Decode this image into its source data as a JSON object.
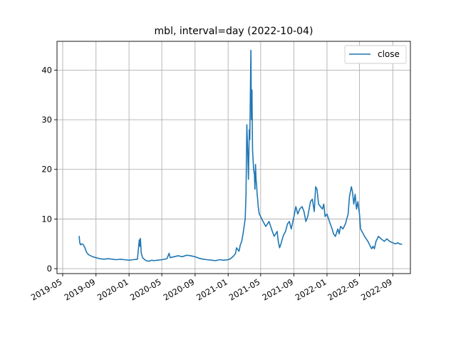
{
  "chart_data": {
    "type": "line",
    "title": "mbl, interval=day (2022-10-04)",
    "xlabel": "",
    "ylabel": "",
    "x_axis": {
      "kind": "date",
      "range": [
        "2019-04-10",
        "2022-11-05"
      ],
      "ticks": [
        "2019-05",
        "2019-09",
        "2020-01",
        "2020-05",
        "2020-09",
        "2021-01",
        "2021-05",
        "2021-09",
        "2022-01",
        "2022-05",
        "2022-09"
      ]
    },
    "y_axis": {
      "range": [
        -1.0,
        45.8
      ],
      "ticks": [
        0,
        10,
        20,
        30,
        40
      ]
    },
    "grid": true,
    "legend": {
      "position": "top-right",
      "entries": [
        "close"
      ]
    },
    "colors": {
      "line": "#1f77b4"
    },
    "series": [
      {
        "name": "close",
        "x": [
          "2019-07-01",
          "2019-07-03",
          "2019-07-06",
          "2019-07-10",
          "2019-07-15",
          "2019-07-22",
          "2019-07-29",
          "2019-08-05",
          "2019-08-12",
          "2019-08-20",
          "2019-09-01",
          "2019-09-15",
          "2019-10-01",
          "2019-10-15",
          "2019-11-01",
          "2019-11-15",
          "2019-12-01",
          "2019-12-15",
          "2020-01-01",
          "2020-01-15",
          "2020-02-01",
          "2020-02-08",
          "2020-02-10",
          "2020-02-12",
          "2020-02-15",
          "2020-02-20",
          "2020-02-28",
          "2020-03-05",
          "2020-03-15",
          "2020-03-25",
          "2020-04-01",
          "2020-04-15",
          "2020-05-01",
          "2020-05-20",
          "2020-05-28",
          "2020-06-01",
          "2020-06-15",
          "2020-07-01",
          "2020-07-15",
          "2020-08-01",
          "2020-08-15",
          "2020-09-01",
          "2020-09-15",
          "2020-10-01",
          "2020-10-15",
          "2020-11-01",
          "2020-11-15",
          "2020-12-01",
          "2020-12-15",
          "2021-01-01",
          "2021-01-10",
          "2021-01-20",
          "2021-01-28",
          "2021-02-01",
          "2021-02-10",
          "2021-02-15",
          "2021-02-20",
          "2021-02-25",
          "2021-03-01",
          "2021-03-05",
          "2021-03-08",
          "2021-03-11",
          "2021-03-14",
          "2021-03-17",
          "2021-03-20",
          "2021-03-22",
          "2021-03-24",
          "2021-03-26",
          "2021-03-28",
          "2021-03-30",
          "2021-04-01",
          "2021-04-03",
          "2021-04-05",
          "2021-04-08",
          "2021-04-10",
          "2021-04-12",
          "2021-04-14",
          "2021-04-16",
          "2021-04-18",
          "2021-04-20",
          "2021-04-22",
          "2021-04-26",
          "2021-05-01",
          "2021-05-05",
          "2021-05-10",
          "2021-05-15",
          "2021-05-20",
          "2021-06-01",
          "2021-06-10",
          "2021-06-20",
          "2021-07-01",
          "2021-07-05",
          "2021-07-10",
          "2021-07-15",
          "2021-07-20",
          "2021-07-25",
          "2021-08-01",
          "2021-08-08",
          "2021-08-15",
          "2021-08-22",
          "2021-09-01",
          "2021-09-08",
          "2021-09-15",
          "2021-09-22",
          "2021-10-01",
          "2021-10-08",
          "2021-10-15",
          "2021-10-22",
          "2021-11-01",
          "2021-11-08",
          "2021-11-15",
          "2021-11-20",
          "2021-11-25",
          "2021-12-01",
          "2021-12-08",
          "2021-12-15",
          "2021-12-20",
          "2021-12-25",
          "2022-01-01",
          "2022-01-10",
          "2022-01-20",
          "2022-01-25",
          "2022-02-01",
          "2022-02-10",
          "2022-02-15",
          "2022-02-20",
          "2022-03-01",
          "2022-03-10",
          "2022-03-20",
          "2022-03-25",
          "2022-04-01",
          "2022-04-05",
          "2022-04-10",
          "2022-04-15",
          "2022-04-20",
          "2022-04-25",
          "2022-05-01",
          "2022-05-05",
          "2022-05-10",
          "2022-05-15",
          "2022-05-20",
          "2022-06-01",
          "2022-06-10",
          "2022-06-15",
          "2022-06-20",
          "2022-06-25",
          "2022-07-01",
          "2022-07-10",
          "2022-07-20",
          "2022-08-01",
          "2022-08-10",
          "2022-08-20",
          "2022-09-01",
          "2022-09-10",
          "2022-09-20",
          "2022-09-25",
          "2022-10-04"
        ],
        "values": [
          6.5,
          5.2,
          4.8,
          5.0,
          4.9,
          4.2,
          3.2,
          2.8,
          2.6,
          2.4,
          2.2,
          2.0,
          1.9,
          2.0,
          1.9,
          1.8,
          1.9,
          1.8,
          1.7,
          1.8,
          1.9,
          5.8,
          4.5,
          6.1,
          3.2,
          2.2,
          1.8,
          1.6,
          1.5,
          1.7,
          1.6,
          1.7,
          1.8,
          2.0,
          3.1,
          2.2,
          2.4,
          2.6,
          2.4,
          2.7,
          2.6,
          2.4,
          2.1,
          1.9,
          1.8,
          1.7,
          1.6,
          1.8,
          1.7,
          1.8,
          2.0,
          2.5,
          3.0,
          4.2,
          3.5,
          4.8,
          5.5,
          7.0,
          8.5,
          10.0,
          15.0,
          29.0,
          24.0,
          18.0,
          28.0,
          26.0,
          35.0,
          44.0,
          30.0,
          36.0,
          24.0,
          22.0,
          20.0,
          19.0,
          16.0,
          21.0,
          18.0,
          17.0,
          15.0,
          14.0,
          12.5,
          11.0,
          10.5,
          10.0,
          9.5,
          9.0,
          8.5,
          9.5,
          8.0,
          6.5,
          7.5,
          5.5,
          4.2,
          5.0,
          6.0,
          6.8,
          7.5,
          9.0,
          9.5,
          8.0,
          10.5,
          12.5,
          11.0,
          12.0,
          12.5,
          11.5,
          9.5,
          10.5,
          13.5,
          14.0,
          11.5,
          16.5,
          16.0,
          13.0,
          12.5,
          12.0,
          13.0,
          10.5,
          11.0,
          9.5,
          8.0,
          7.0,
          6.5,
          8.0,
          7.0,
          8.5,
          8.0,
          9.0,
          11.0,
          14.5,
          16.5,
          15.5,
          13.0,
          15.0,
          12.0,
          13.5,
          11.0,
          8.0,
          7.5,
          7.0,
          6.5,
          5.5,
          4.5,
          4.0,
          4.5,
          4.0,
          5.5,
          6.5,
          6.0,
          5.5,
          6.0,
          5.5,
          5.2,
          5.0,
          5.2,
          5.0,
          4.9
        ]
      }
    ]
  }
}
